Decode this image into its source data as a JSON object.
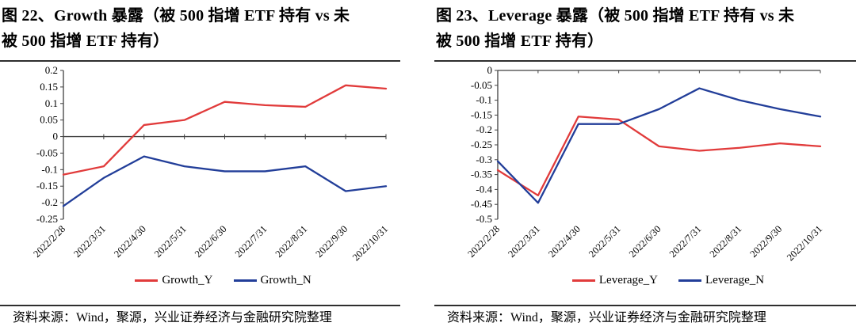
{
  "page": {
    "background": "#ffffff"
  },
  "colors": {
    "red": "#e13b3b",
    "blue": "#223e99",
    "axis": "#404040",
    "rule": "#2e2e2e",
    "text": "#000000"
  },
  "figures": [
    {
      "title_lines": [
        "图 22、Growth 暴露（被 500 指增 ETF 持有  vs  未",
        "被 500 指增 ETF 持有）"
      ],
      "source": "资料来源：Wind，聚源，兴业证券经济与金融研究院整理"
    },
    {
      "title_lines": [
        "图 23、Leverage 暴露（被 500 指增 ETF 持有  vs  未",
        "被 500 指增 ETF 持有）"
      ],
      "source": "资料来源：Wind，聚源，兴业证券经济与金融研究院整理"
    }
  ],
  "chart_data": [
    {
      "type": "line",
      "title": "图 22、Growth 暴露（被 500 指增 ETF 持有 vs 未被 500 指增 ETF 持有）",
      "categories": [
        "2022/2/28",
        "2022/3/31",
        "2022/4/30",
        "2022/5/31",
        "2022/6/30",
        "2022/7/31",
        "2022/8/31",
        "2022/9/30",
        "2022/10/31"
      ],
      "series": [
        {
          "name": "Growth_Y",
          "color": "#e13b3b",
          "values": [
            -0.115,
            -0.09,
            0.035,
            0.05,
            0.105,
            0.095,
            0.09,
            0.155,
            0.145
          ]
        },
        {
          "name": "Growth_N",
          "color": "#223e99",
          "values": [
            -0.21,
            -0.125,
            -0.06,
            -0.09,
            -0.105,
            -0.105,
            -0.09,
            -0.165,
            -0.15
          ]
        }
      ],
      "ylim": [
        -0.25,
        0.2
      ],
      "ytick_values": [
        0.2,
        0.15,
        0.1,
        0.05,
        0,
        -0.05,
        -0.1,
        -0.15,
        -0.2,
        -0.25
      ],
      "ytick_labels": [
        "0.2",
        "0.15",
        "0.1",
        "0.05",
        "0",
        "-0.05",
        "-0.1",
        "-0.15",
        "-0.2",
        "-0.25"
      ],
      "grid": false,
      "legend_position": "bottom",
      "x_label_rotation": -45
    },
    {
      "type": "line",
      "title": "图 23、Leverage 暴露（被 500 指增 ETF 持有 vs 未被 500 指增 ETF 持有）",
      "categories": [
        "2022/2/28",
        "2022/3/31",
        "2022/4/30",
        "2022/5/31",
        "2022/6/30",
        "2022/7/31",
        "2022/8/31",
        "2022/9/30",
        "2022/10/31"
      ],
      "series": [
        {
          "name": "Leverage_Y",
          "color": "#e13b3b",
          "values": [
            -0.335,
            -0.42,
            -0.155,
            -0.165,
            -0.255,
            -0.27,
            -0.26,
            -0.245,
            -0.255
          ]
        },
        {
          "name": "Leverage_N",
          "color": "#223e99",
          "values": [
            -0.305,
            -0.445,
            -0.18,
            -0.18,
            -0.13,
            -0.06,
            -0.1,
            -0.13,
            -0.155
          ]
        }
      ],
      "ylim": [
        -0.5,
        0
      ],
      "ytick_values": [
        0,
        -0.05,
        -0.1,
        -0.15,
        -0.2,
        -0.25,
        -0.3,
        -0.35,
        -0.4,
        -0.45,
        -0.5
      ],
      "ytick_labels": [
        "0",
        "-0.05",
        "-0.1",
        "-0.15",
        "-0.2",
        "-0.25",
        "-0.3",
        "-0.35",
        "-0.4",
        "-0.45",
        "-0.5"
      ],
      "grid": false,
      "legend_position": "bottom",
      "x_label_rotation": -45
    }
  ]
}
